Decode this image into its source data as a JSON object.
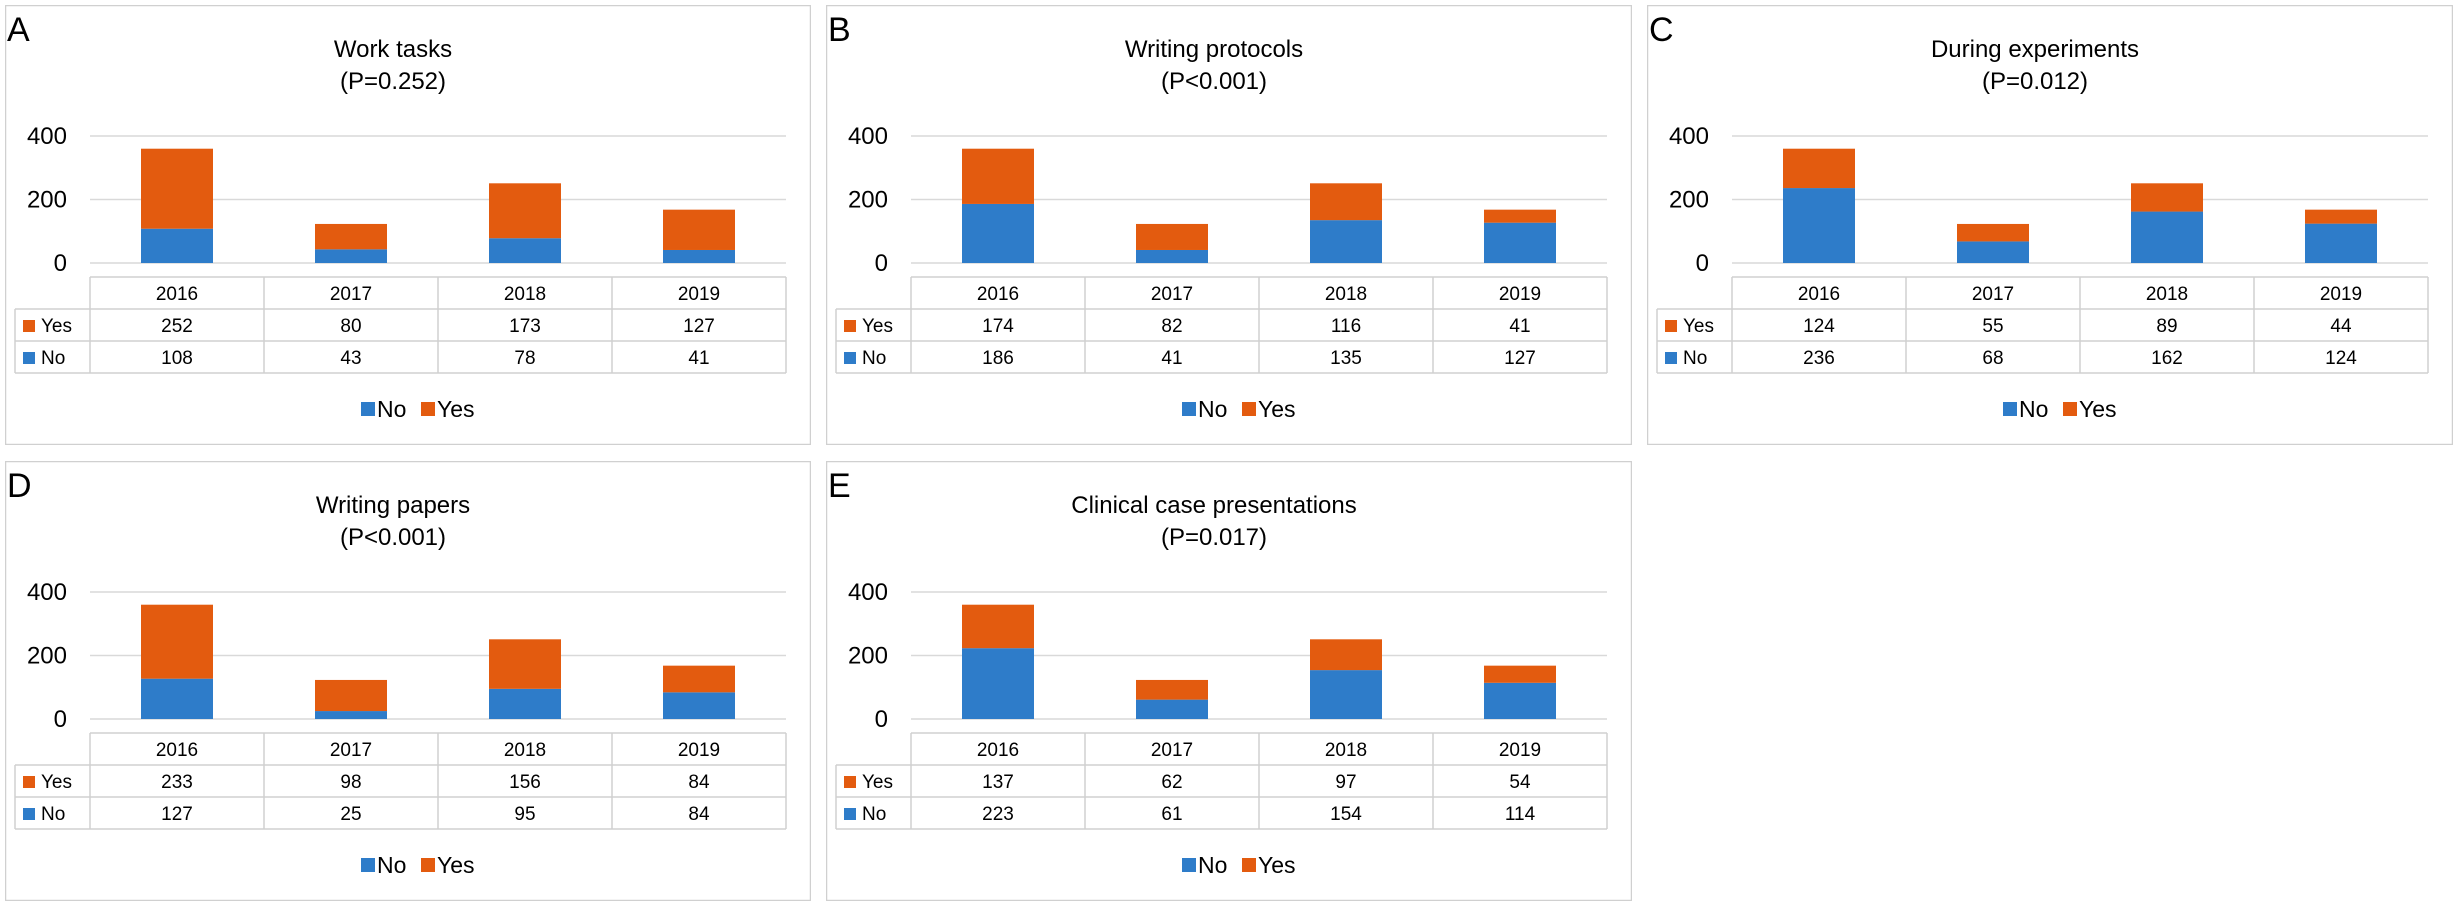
{
  "colors": {
    "no": "#2E7CC9",
    "yes": "#E35B0F",
    "grid": "#d9d9d9",
    "border": "#d0d0d0"
  },
  "chart_data": [
    {
      "letter": "A",
      "type": "bar",
      "stacked": true,
      "title": "Work tasks",
      "subtitle": "(P=0.252)",
      "categories": [
        "2016",
        "2017",
        "2018",
        "2019"
      ],
      "series": [
        {
          "name": "No",
          "values": [
            108,
            43,
            78,
            41
          ]
        },
        {
          "name": "Yes",
          "values": [
            252,
            80,
            173,
            127
          ]
        }
      ],
      "ylim": [
        0,
        400
      ],
      "yticks": [
        "0",
        "200",
        "400"
      ],
      "grid": true,
      "legend": "bottom",
      "data_table": true
    },
    {
      "letter": "B",
      "type": "bar",
      "stacked": true,
      "title": "Writing protocols",
      "subtitle": "(P<0.001)",
      "categories": [
        "2016",
        "2017",
        "2018",
        "2019"
      ],
      "series": [
        {
          "name": "No",
          "values": [
            186,
            41,
            135,
            127
          ]
        },
        {
          "name": "Yes",
          "values": [
            174,
            82,
            116,
            41
          ]
        }
      ],
      "ylim": [
        0,
        400
      ],
      "yticks": [
        "0",
        "200",
        "400"
      ],
      "grid": true,
      "legend": "bottom",
      "data_table": true
    },
    {
      "letter": "C",
      "type": "bar",
      "stacked": true,
      "title": "During experiments",
      "subtitle": "(P=0.012)",
      "categories": [
        "2016",
        "2017",
        "2018",
        "2019"
      ],
      "series": [
        {
          "name": "No",
          "values": [
            236,
            68,
            162,
            124
          ]
        },
        {
          "name": "Yes",
          "values": [
            124,
            55,
            89,
            44
          ]
        }
      ],
      "ylim": [
        0,
        400
      ],
      "yticks": [
        "0",
        "200",
        "400"
      ],
      "grid": true,
      "legend": "bottom",
      "data_table": true
    },
    {
      "letter": "D",
      "type": "bar",
      "stacked": true,
      "title": "Writing papers",
      "subtitle": "(P<0.001)",
      "categories": [
        "2016",
        "2017",
        "2018",
        "2019"
      ],
      "series": [
        {
          "name": "No",
          "values": [
            127,
            25,
            95,
            84
          ]
        },
        {
          "name": "Yes",
          "values": [
            233,
            98,
            156,
            84
          ]
        }
      ],
      "ylim": [
        0,
        400
      ],
      "yticks": [
        "0",
        "200",
        "400"
      ],
      "grid": true,
      "legend": "bottom",
      "data_table": true
    },
    {
      "letter": "E",
      "type": "bar",
      "stacked": true,
      "title": "Clinical case presentations",
      "subtitle": "(P=0.017)",
      "categories": [
        "2016",
        "2017",
        "2018",
        "2019"
      ],
      "series": [
        {
          "name": "No",
          "values": [
            223,
            61,
            154,
            114
          ]
        },
        {
          "name": "Yes",
          "values": [
            137,
            62,
            97,
            54
          ]
        }
      ],
      "ylim": [
        0,
        400
      ],
      "yticks": [
        "0",
        "200",
        "400"
      ],
      "grid": true,
      "legend": "bottom",
      "data_table": true
    }
  ]
}
